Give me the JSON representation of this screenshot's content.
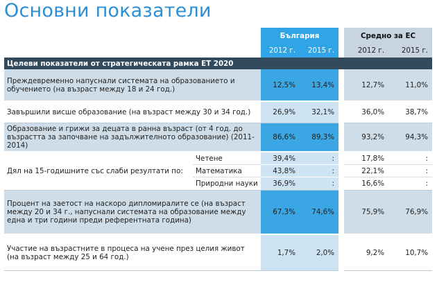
{
  "title": "Основни показатели",
  "header": {
    "bulgaria": "България",
    "eu_avg": "Средно за ЕС",
    "years": [
      "2012 г.",
      "2015 г.",
      "2012 г.",
      "2015 г."
    ]
  },
  "section_title": "Целеви показатели от стратегическата рамка ЕТ 2020",
  "rows": [
    {
      "label": "Преждевременно напуснали системата на образованието и обучението (на възраст между 18 и 24 год.)",
      "values": [
        "12,5%",
        "13,4%",
        "12,7%",
        "11,0%"
      ]
    },
    {
      "label": "Завършили висше образование (на възраст между 30 и 34 год.)",
      "values": [
        "26,9%",
        "32,1%",
        "36,0%",
        "38,7%"
      ]
    },
    {
      "label": "Образование и грижи за децата в ранна възраст (от 4 год. до възрастта за започване на задължителното образование) (2011-2014)",
      "values": [
        "86,6%",
        "89,3%",
        "93,2%",
        "94,3%"
      ]
    },
    {
      "label": "Дял на 15-годишните със слаби резултати по:",
      "subrows": [
        {
          "name": "Четене",
          "values": [
            "39,4%",
            ":",
            "17,8%",
            ":"
          ]
        },
        {
          "name": "Математика",
          "values": [
            "43,8%",
            ":",
            "22,1%",
            ":"
          ]
        },
        {
          "name": "Природни науки",
          "values": [
            "36,9%",
            ":",
            "16,6%",
            ":"
          ]
        }
      ]
    },
    {
      "label": "Процент на заетост на наскоро дипломиралите се (на възраст между 20 и 34 г., напуснали системата на образование между една и три години преди референтната година)",
      "values": [
        "67,3%",
        "74,6%",
        "75,9%",
        "76,9%"
      ]
    },
    {
      "label": "Участие на възрастните в процеса на учене през целия живот (на възраст между 25 и 64 год.)",
      "values": [
        "1,7%",
        "2,0%",
        "9,2%",
        "10,7%"
      ]
    }
  ]
}
